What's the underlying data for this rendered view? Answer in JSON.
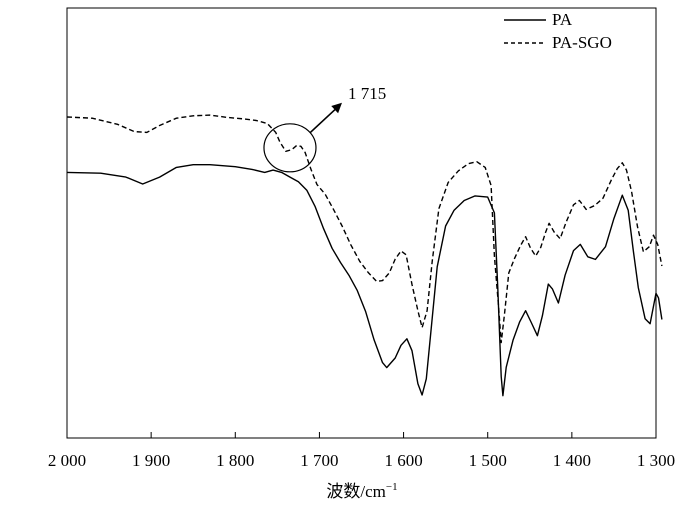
{
  "chart_data": {
    "type": "line",
    "title": "",
    "xlabel": "波数/cm",
    "xlabel_superscript": "−1",
    "ylabel": "",
    "x_reversed": true,
    "xlim": [
      2000,
      1300
    ],
    "x_ticks": [
      {
        "value": 2000,
        "label": "2 000"
      },
      {
        "value": 1900,
        "label": "1 900"
      },
      {
        "value": 1800,
        "label": "1 800"
      },
      {
        "value": 1700,
        "label": "1 700"
      },
      {
        "value": 1600,
        "label": "1 600"
      },
      {
        "value": 1500,
        "label": "1 500"
      },
      {
        "value": 1400,
        "label": "1 400"
      },
      {
        "value": 1300,
        "label": "1 300"
      }
    ],
    "y_ticks_visible": false,
    "ylim": [
      0,
      100
    ],
    "grid": false,
    "legend_position": "top-right",
    "series": [
      {
        "name": "PA",
        "style": "solid",
        "color": "#000000",
        "points": [
          [
            2000,
            65.6
          ],
          [
            1960,
            65.4
          ],
          [
            1930,
            64.4
          ],
          [
            1910,
            62.6
          ],
          [
            1890,
            64.4
          ],
          [
            1870,
            66.9
          ],
          [
            1850,
            67.6
          ],
          [
            1830,
            67.6
          ],
          [
            1800,
            67.1
          ],
          [
            1780,
            66.4
          ],
          [
            1765,
            65.6
          ],
          [
            1755,
            66.2
          ],
          [
            1745,
            65.6
          ],
          [
            1735,
            64.4
          ],
          [
            1725,
            63.2
          ],
          [
            1715,
            61.0
          ],
          [
            1705,
            56.7
          ],
          [
            1695,
            51.0
          ],
          [
            1685,
            45.9
          ],
          [
            1675,
            42.2
          ],
          [
            1665,
            38.9
          ],
          [
            1655,
            34.9
          ],
          [
            1645,
            29.4
          ],
          [
            1635,
            22.1
          ],
          [
            1625,
            16.2
          ],
          [
            1620,
            14.9
          ],
          [
            1610,
            17.4
          ],
          [
            1603,
            20.7
          ],
          [
            1596,
            22.4
          ],
          [
            1590,
            19.3
          ],
          [
            1583,
            10.7
          ],
          [
            1578,
            7.8
          ],
          [
            1573,
            12.0
          ],
          [
            1567,
            25.3
          ],
          [
            1560,
            41.1
          ],
          [
            1550,
            51.7
          ],
          [
            1540,
            55.8
          ],
          [
            1528,
            58.3
          ],
          [
            1515,
            59.5
          ],
          [
            1500,
            59.2
          ],
          [
            1492,
            55.1
          ],
          [
            1488,
            35.5
          ],
          [
            1484,
            12.6
          ],
          [
            1482,
            7.6
          ],
          [
            1478,
            15.0
          ],
          [
            1470,
            22.0
          ],
          [
            1462,
            26.8
          ],
          [
            1455,
            29.7
          ],
          [
            1448,
            26.5
          ],
          [
            1441,
            23.2
          ],
          [
            1435,
            28.4
          ],
          [
            1428,
            36.6
          ],
          [
            1423,
            35.3
          ],
          [
            1416,
            31.7
          ],
          [
            1408,
            38.9
          ],
          [
            1398,
            45.3
          ],
          [
            1390,
            46.9
          ],
          [
            1381,
            43.7
          ],
          [
            1372,
            43.0
          ],
          [
            1360,
            46.3
          ],
          [
            1350,
            53.6
          ],
          [
            1340,
            59.7
          ],
          [
            1333,
            55.8
          ],
          [
            1327,
            45.3
          ],
          [
            1321,
            35.7
          ],
          [
            1313,
            27.6
          ],
          [
            1307,
            26.3
          ],
          [
            1300,
            34.2
          ],
          [
            1297,
            33.0
          ],
          [
            1293,
            27.4
          ]
        ]
      },
      {
        "name": "PA-SGO",
        "style": "dashed",
        "color": "#000000",
        "points": [
          [
            2000,
            80.0
          ],
          [
            1970,
            79.7
          ],
          [
            1940,
            78.1
          ],
          [
            1920,
            76.2
          ],
          [
            1905,
            76.0
          ],
          [
            1890,
            77.8
          ],
          [
            1870,
            79.7
          ],
          [
            1850,
            80.3
          ],
          [
            1830,
            80.5
          ],
          [
            1810,
            79.9
          ],
          [
            1790,
            79.5
          ],
          [
            1775,
            79.1
          ],
          [
            1762,
            78.3
          ],
          [
            1752,
            76.0
          ],
          [
            1747,
            73.5
          ],
          [
            1740,
            71.1
          ],
          [
            1733,
            71.5
          ],
          [
            1727,
            72.6
          ],
          [
            1722,
            72.4
          ],
          [
            1717,
            70.8
          ],
          [
            1710,
            66.4
          ],
          [
            1703,
            62.5
          ],
          [
            1693,
            59.9
          ],
          [
            1683,
            55.9
          ],
          [
            1673,
            51.7
          ],
          [
            1663,
            46.9
          ],
          [
            1652,
            42.5
          ],
          [
            1642,
            39.6
          ],
          [
            1632,
            37.3
          ],
          [
            1625,
            37.5
          ],
          [
            1617,
            39.5
          ],
          [
            1610,
            43.1
          ],
          [
            1603,
            45.2
          ],
          [
            1597,
            44.2
          ],
          [
            1590,
            36.5
          ],
          [
            1583,
            29.7
          ],
          [
            1578,
            25.3
          ],
          [
            1572,
            29.7
          ],
          [
            1566,
            42.5
          ],
          [
            1558,
            56.2
          ],
          [
            1547,
            63.0
          ],
          [
            1535,
            66.0
          ],
          [
            1523,
            67.9
          ],
          [
            1513,
            68.4
          ],
          [
            1503,
            66.9
          ],
          [
            1496,
            62.2
          ],
          [
            1492,
            43.9
          ],
          [
            1487,
            30.3
          ],
          [
            1484,
            21.4
          ],
          [
            1480,
            28.8
          ],
          [
            1475,
            39.5
          ],
          [
            1468,
            43.3
          ],
          [
            1461,
            46.6
          ],
          [
            1455,
            48.9
          ],
          [
            1449,
            45.9
          ],
          [
            1443,
            43.9
          ],
          [
            1437,
            46.1
          ],
          [
            1431,
            50.2
          ],
          [
            1427,
            52.4
          ],
          [
            1421,
            50.1
          ],
          [
            1414,
            48.4
          ],
          [
            1407,
            52.6
          ],
          [
            1398,
            57.2
          ],
          [
            1391,
            58.3
          ],
          [
            1383,
            56.0
          ],
          [
            1373,
            57.0
          ],
          [
            1363,
            58.9
          ],
          [
            1353,
            63.7
          ],
          [
            1346,
            66.6
          ],
          [
            1340,
            68.1
          ],
          [
            1335,
            66.2
          ],
          [
            1329,
            60.6
          ],
          [
            1322,
            51.5
          ],
          [
            1315,
            45.0
          ],
          [
            1308,
            46.3
          ],
          [
            1303,
            49.3
          ],
          [
            1298,
            46.9
          ],
          [
            1293,
            41.3
          ]
        ]
      }
    ],
    "annotations": [
      {
        "type": "circle",
        "label": "1 715",
        "x": 1735,
        "y": 72,
        "arrow": true
      }
    ]
  }
}
